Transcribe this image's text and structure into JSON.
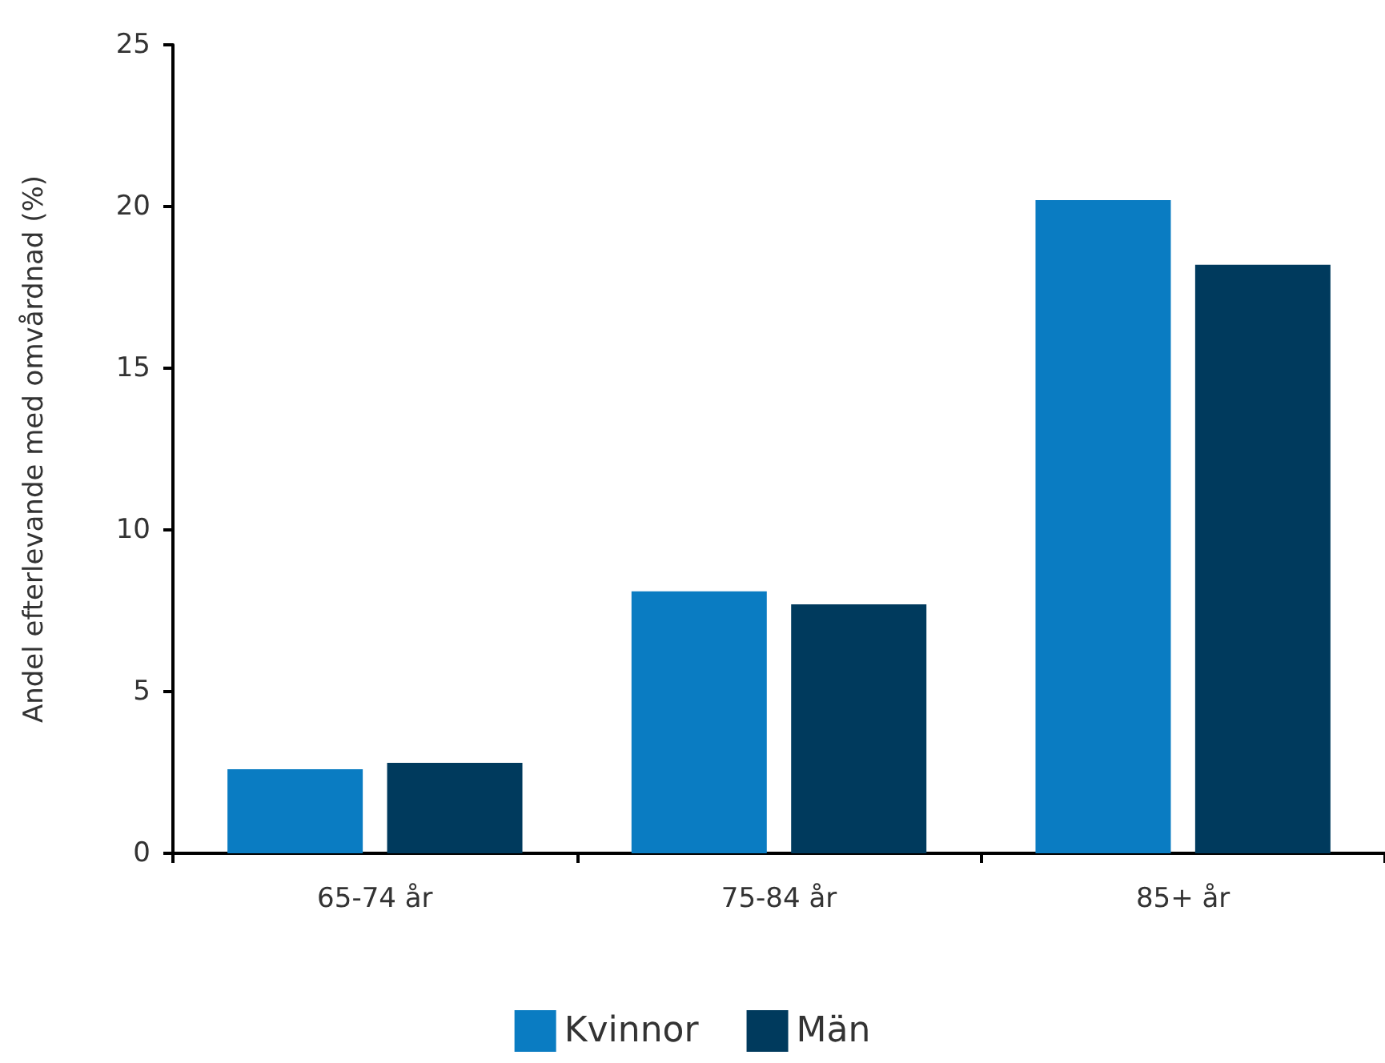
{
  "chart_data": {
    "type": "bar",
    "ylabel": "Andel efterlevande med omvårdnad (%)",
    "categories": [
      "65-74 år",
      "75-84 år",
      "85+ år"
    ],
    "series": [
      {
        "name": "Kvinnor",
        "color": "#0a7cc2",
        "values": [
          2.6,
          8.1,
          20.2
        ]
      },
      {
        "name": "Män",
        "color": "#003a5d",
        "values": [
          2.8,
          7.7,
          18.2
        ]
      }
    ],
    "ylim": [
      0,
      25
    ],
    "yticks": [
      0,
      5,
      10,
      15,
      20,
      25
    ],
    "grid": false,
    "legend": "bottom"
  }
}
